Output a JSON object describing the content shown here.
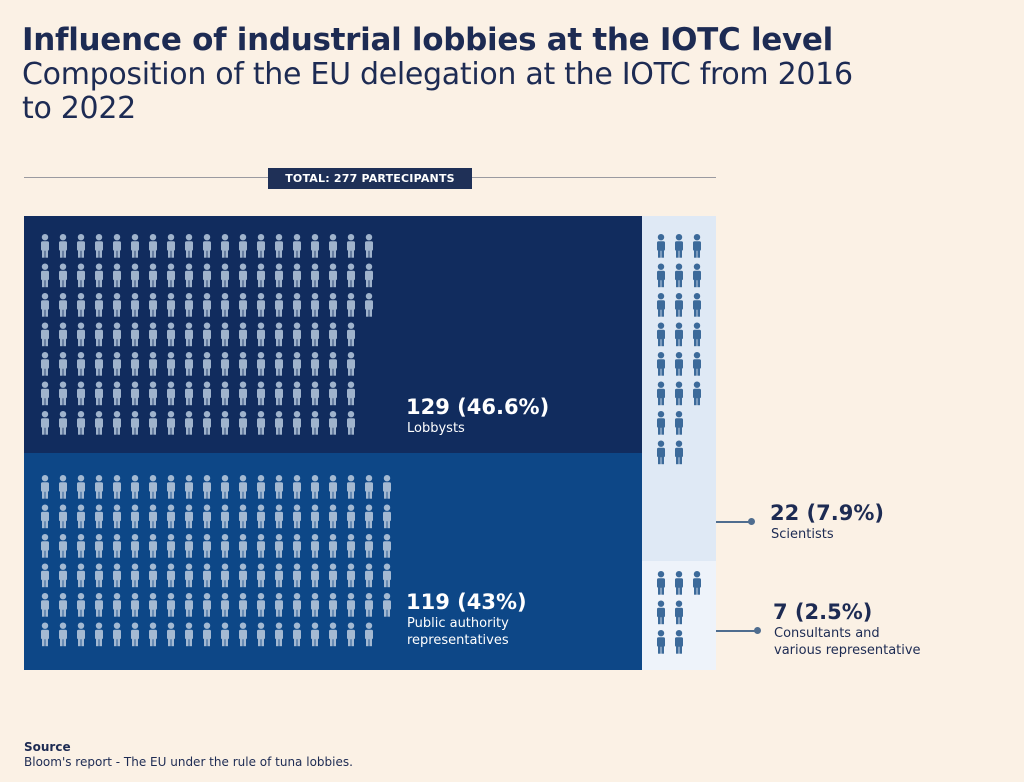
{
  "header": {
    "title": "Influence of industrial lobbies at the IOTC level",
    "subtitle": "Composition of the EU delegation at the IOTC from 2016 to 2022"
  },
  "total_label": "TOTAL: 277 PARTECIPANTS",
  "chart_data": {
    "type": "treemap-pictogram",
    "title": "Influence of industrial lobbies at the IOTC level",
    "subtitle": "Composition of the EU delegation at the IOTC from 2016 to 2022",
    "total": 277,
    "categories": [
      "Lobbysts",
      "Public authority representatives",
      "Scientists",
      "Consultants and various representative"
    ],
    "series": [
      {
        "name": "Lobbysts",
        "count": 129,
        "percent": 46.6,
        "value_label": "129 (46.6%)",
        "color": "#112c5e",
        "icon_color": "#9fb3cc"
      },
      {
        "name": "Public authority representatives",
        "count": 119,
        "percent": 43,
        "value_label": "119 (43%)",
        "color": "#0d4787",
        "icon_color": "#a3b9d2"
      },
      {
        "name": "Scientists",
        "count": 22,
        "percent": 7.9,
        "value_label": "22 (7.9%)",
        "color": "#dfe9f5",
        "icon_color": "#3c6a9a"
      },
      {
        "name": "Consultants and various representative",
        "count": 7,
        "percent": 2.5,
        "value_label": "7 (2.5%)",
        "color": "#eef3fa",
        "icon_color": "#3c6a9a"
      }
    ]
  },
  "labels": {
    "lobby_value": "129 (46.6%)",
    "lobby_name": "Lobbysts",
    "public_value": "119 (43%)",
    "public_name_1": "Public authority",
    "public_name_2": "representatives",
    "sci_value": "22 (7.9%)",
    "sci_name": "Scientists",
    "cons_value": "7 (2.5%)",
    "cons_name_1": "Consultants and",
    "cons_name_2": "various representative"
  },
  "source": {
    "heading": "Source",
    "text": "Bloom's report - The EU under the rule of tuna lobbies."
  }
}
